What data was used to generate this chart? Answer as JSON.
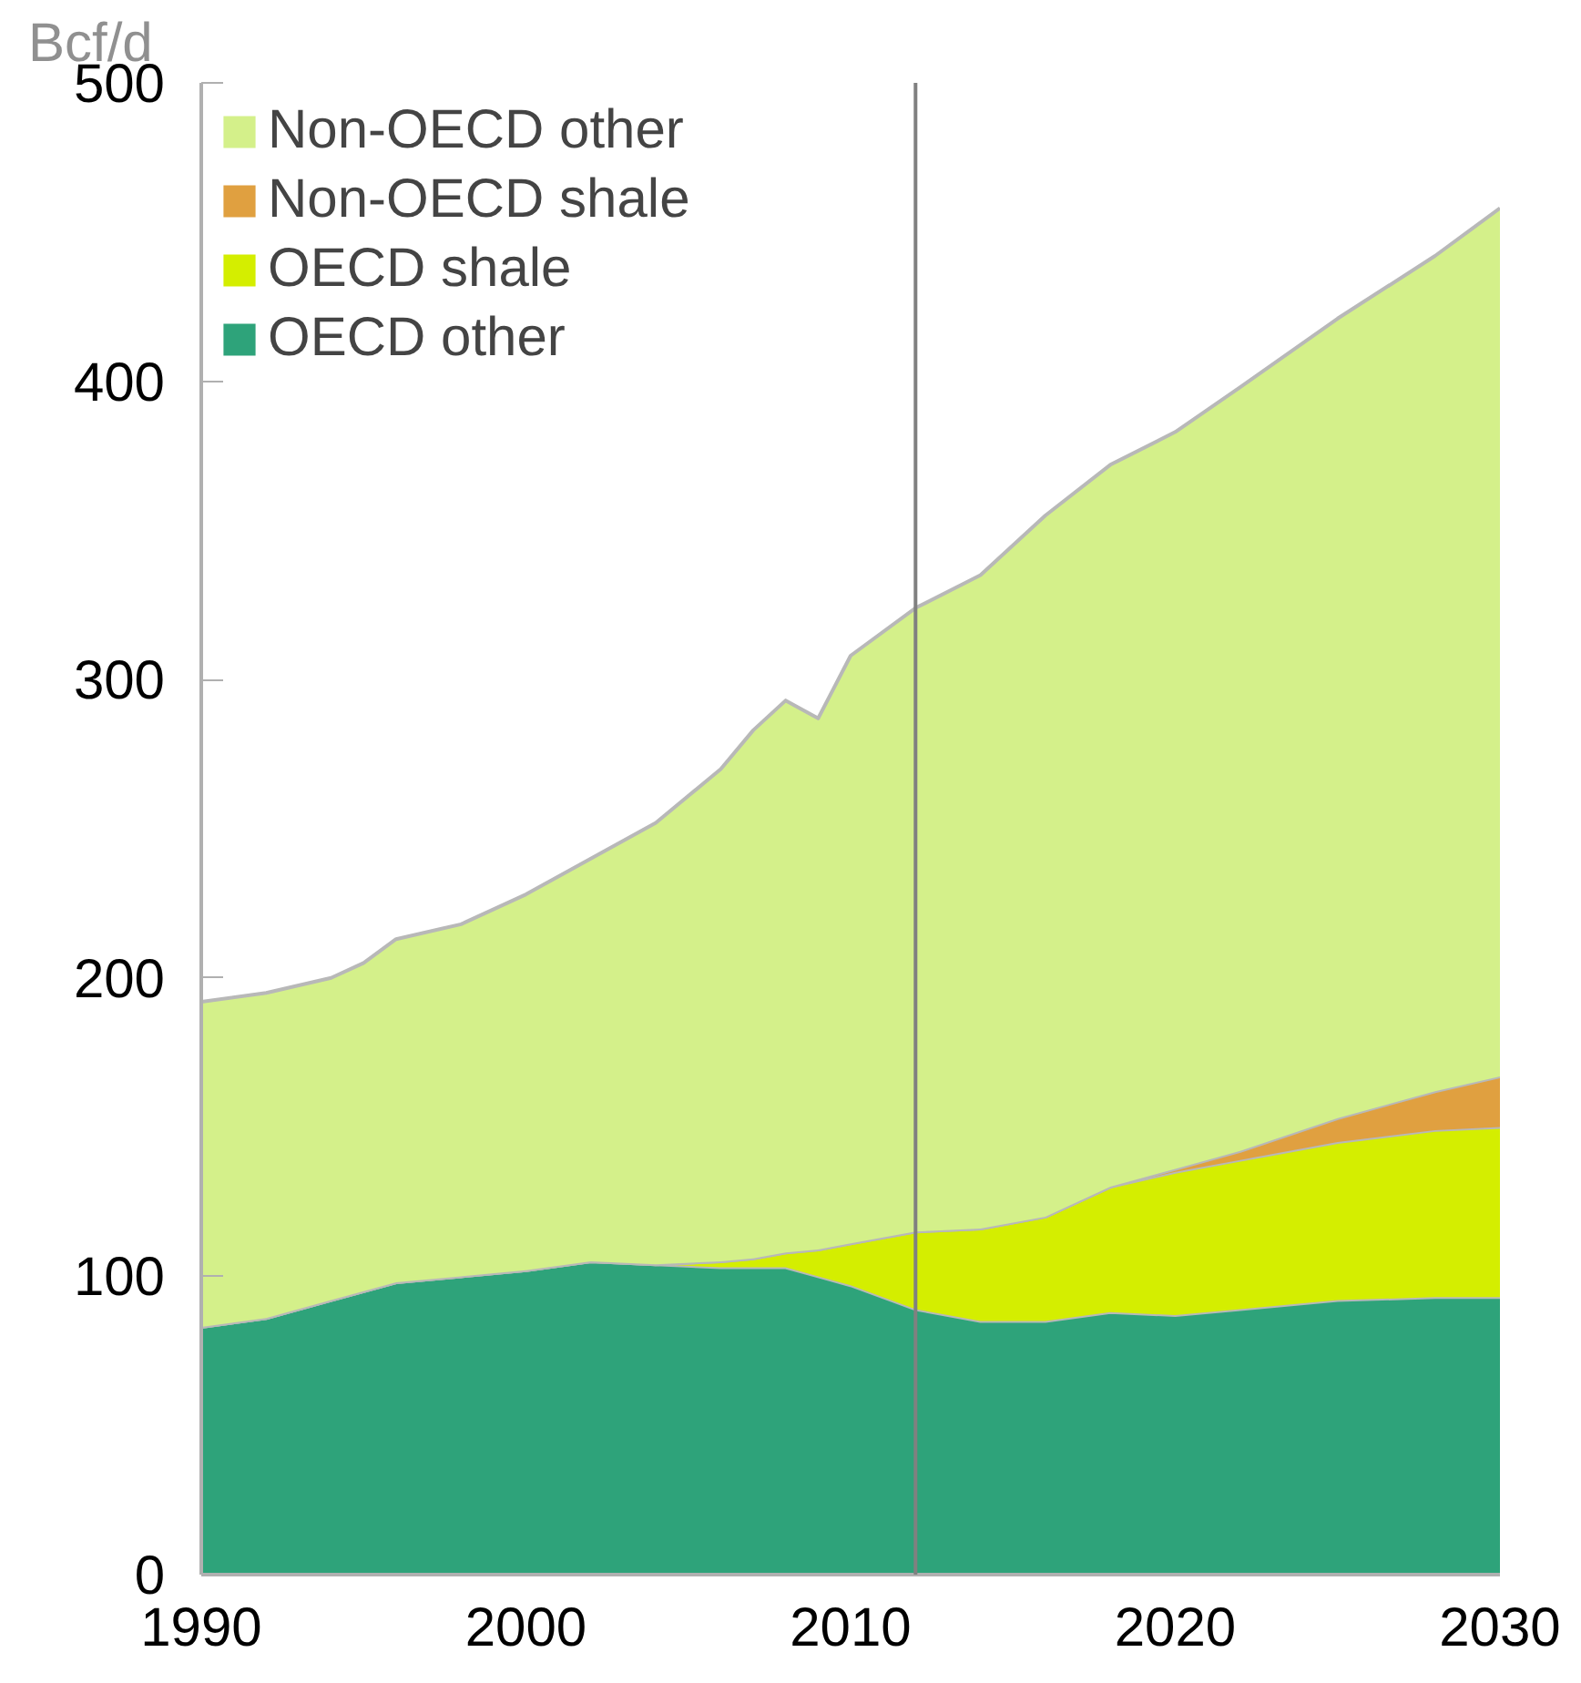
{
  "chart_data": {
    "type": "area",
    "stacked": true,
    "ylabel": "Bcf/d",
    "x": [
      1990,
      1992,
      1994,
      1995,
      1996,
      1998,
      2000,
      2002,
      2004,
      2006,
      2007,
      2008,
      2009,
      2010,
      2012,
      2014,
      2016,
      2018,
      2020,
      2022,
      2025,
      2028,
      2030
    ],
    "series": [
      {
        "name": "OECD other",
        "color": "#2ea37a",
        "values": [
          83,
          86,
          92,
          95,
          98,
          100,
          102,
          105,
          104,
          103,
          103,
          103,
          100,
          97,
          89,
          85,
          85,
          88,
          87,
          89,
          92,
          93,
          93
        ]
      },
      {
        "name": "OECD shale",
        "color": "#d4ee00",
        "values": [
          0,
          0,
          0,
          0,
          0,
          0,
          0,
          0,
          0,
          2,
          3,
          5,
          9,
          14,
          26,
          31,
          35,
          42,
          48,
          50,
          53,
          56,
          57
        ]
      },
      {
        "name": "Non-OECD shale",
        "color": "#e0a040",
        "values": [
          0,
          0,
          0,
          0,
          0,
          0,
          0,
          0,
          0,
          0,
          0,
          0,
          0,
          0,
          0,
          0,
          0,
          0,
          1,
          3,
          8,
          13,
          17
        ]
      },
      {
        "name": "Non-OECD other",
        "color": "#d4f08a",
        "values": [
          109,
          109,
          108,
          110,
          115,
          118,
          126,
          135,
          148,
          165,
          177,
          185,
          178,
          197,
          209,
          219,
          235,
          242,
          247,
          256,
          268,
          280,
          291
        ]
      }
    ],
    "xlim": [
      1990,
      2030
    ],
    "xticks": [
      1990,
      2000,
      2010,
      2020,
      2030
    ],
    "ylim": [
      0,
      500
    ],
    "yticks": [
      0,
      100,
      200,
      300,
      400,
      500
    ],
    "ref_lines": [
      {
        "axis": "x",
        "value": 2012,
        "color": "#808080"
      }
    ],
    "grid": false,
    "legend": "top left"
  }
}
